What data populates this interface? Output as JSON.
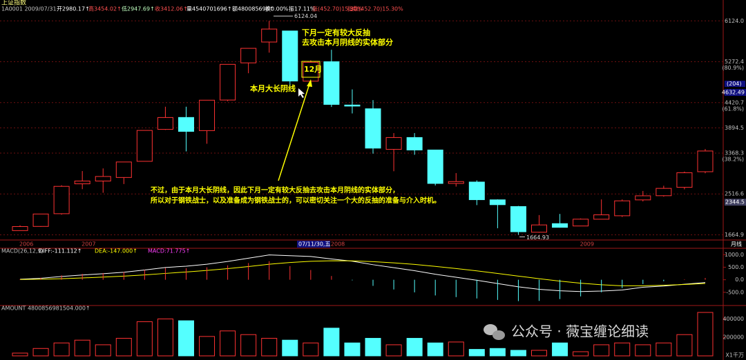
{
  "chart_data": [
    {
      "type": "candlestick",
      "title": "上证指数",
      "info": [
        {
          "text": "1A0001 2009/07/31",
          "color": "#c0c0c0"
        },
        {
          "text": "开2980.17↑",
          "color": "#ffffff"
        },
        {
          "text": "高3454.02↑",
          "color": "#ff5050"
        },
        {
          "text": "低2947.69↑",
          "color": "#c0ffc0"
        },
        {
          "text": "收3412.06↑",
          "color": "#ff5050"
        },
        {
          "text": "量4540701696↑",
          "color": "#ffffff"
        },
        {
          "text": "额480085696↑",
          "color": "#ffffff"
        },
        {
          "text": "换0.00%",
          "color": "#ffffff"
        },
        {
          "text": "振17.11%",
          "color": "#ffffff"
        },
        {
          "text": "涨(452.70)15.30%",
          "color": "#ff5050"
        },
        {
          "text": "指数(452.70)15.30%",
          "color": "#ff5050"
        }
      ],
      "categories": [
        "2006",
        null,
        null,
        "2007",
        null,
        null,
        null,
        null,
        null,
        null,
        null,
        null,
        null,
        null,
        null,
        "2008",
        null,
        null,
        null,
        null,
        null,
        null,
        null,
        null,
        null,
        null,
        null,
        "2009",
        null,
        null,
        null,
        null,
        null,
        null
      ],
      "open": [
        1753,
        1840,
        2105,
        2728,
        2786,
        2860,
        3197,
        3863,
        4111,
        3837,
        4474,
        5249,
        5683,
        5914,
        4868,
        5273,
        4370,
        4292,
        3446,
        3693,
        3433,
        2736,
        2765,
        2394,
        2254,
        1719,
        1898,
        1849,
        1990,
        2062,
        2393,
        2480,
        2655,
        2980.17
      ],
      "high": [
        1863,
        2101,
        2698,
        2994,
        3049,
        3183,
        3841,
        4335,
        4335,
        4471,
        5219,
        5552,
        6124.04,
        5915,
        5303,
        5522,
        4696,
        4473,
        3786,
        3786,
        3434,
        2952,
        2800,
        2404,
        2267,
        2076,
        2100,
        2006,
        2403,
        2402,
        2579,
        2688,
        2983,
        3454.02
      ],
      "low": [
        1751,
        1831,
        2085,
        2617,
        2541,
        2723,
        3196,
        3851,
        3404,
        3563,
        4450,
        5033,
        5462,
        4778,
        4812,
        4330,
        4195,
        3357,
        2990,
        3333,
        2693,
        2670,
        2284,
        1802,
        1664.93,
        1707,
        1814,
        1844,
        1990,
        2037,
        2361,
        2461,
        2613,
        2947.69
      ],
      "close": [
        1837,
        2099,
        2675,
        2786,
        2881,
        3183,
        3841,
        4110,
        3821,
        4471,
        5218,
        5552,
        5954,
        4871,
        5261,
        4383,
        4348,
        3472,
        3693,
        3433,
        2736,
        2775,
        2397,
        2293,
        1729,
        1871,
        1821,
        1991,
        2082,
        2373,
        2478,
        2633,
        2959,
        3412.06
      ],
      "up_color": "#ff3232",
      "down_color": "#54ffff",
      "ylim": [
        1600,
        6200
      ],
      "yticks": [
        {
          "value": 6124,
          "label": "6124.0"
        },
        5272.4,
        4420.7,
        3894.5,
        3368.3,
        2516.6,
        1664.9
      ],
      "fib_labels": [
        {
          "value": 5272.4,
          "label": "(80.9%)"
        },
        {
          "value": 4420.7,
          "label": "(61.8%)"
        },
        {
          "value": 3368.3,
          "label": "(38.2%)"
        }
      ],
      "cursor_label": "(204)",
      "cursor_price": 4632.49,
      "last_price": 2344.5,
      "cursor_date": "07/11/30,五",
      "period_label": "月线",
      "extreme_labels": [
        6124.04,
        1664.93
      ],
      "grid": true,
      "annotations": [
        "下月一定有较大反抽",
        "去攻击本月阴线的实体部分",
        "12月",
        "本月大长阴线",
        "不过，由于本月大长阴线，因此下月一定有较大反抽去攻击本月阴线的实体部分，",
        "所以对于钢铁战士，以及准备成为钢铁战士的，可以密切关注一个大的反抽的准备与介入时机。",
        "公众号 · 薇宝缠论细读"
      ]
    },
    {
      "type": "line",
      "title": "MACD(26,12,9)",
      "series": [
        {
          "name": "DIFF:-111.112↑",
          "color": "#ffffff",
          "values": [
            20,
            60,
            130,
            190,
            240,
            300,
            390,
            490,
            540,
            620,
            730,
            860,
            990,
            960,
            930,
            830,
            740,
            600,
            480,
            360,
            220,
            100,
            -20,
            -150,
            -280,
            -380,
            -440,
            -470,
            -450,
            -410,
            -300,
            -250,
            -180,
            -111.112
          ]
        },
        {
          "name": "DEA:-147.000↑",
          "color": "#ffff00",
          "values": [
            10,
            20,
            42,
            72,
            106,
            145,
            194,
            253,
            310,
            372,
            443,
            527,
            620,
            688,
            736,
            755,
            752,
            722,
            674,
            611,
            533,
            446,
            353,
            252,
            146,
            41,
            -55,
            -138,
            -200,
            -242,
            -240,
            -220,
            -190,
            -147
          ]
        },
        {
          "name": "MACD:71.775↑",
          "color": "#ff40ff",
          "type": "bar",
          "values": [
            20,
            80,
            176,
            236,
            268,
            310,
            392,
            474,
            460,
            496,
            574,
            666,
            740,
            544,
            388,
            150,
            -24,
            -244,
            -388,
            -502,
            -626,
            -692,
            -746,
            -804,
            -852,
            -842,
            -770,
            -664,
            -500,
            -336,
            -172,
            -60,
            20,
            71.775
          ]
        }
      ],
      "up_color": "#ff3232",
      "down_color": "#54ffff",
      "ylim": [
        -1000,
        1200
      ],
      "yticks": [
        {
          "value": 1000,
          "label": "1000.0"
        },
        {
          "value": 500,
          "label": "500.0"
        },
        {
          "value": 0,
          "label": "0.0"
        },
        {
          "value": -500,
          "label": "-500.0"
        }
      ]
    },
    {
      "type": "bar",
      "title": "AMOUNT 4800856981504.000↑",
      "values": [
        30000,
        80000,
        140000,
        170000,
        120000,
        190000,
        370000,
        400000,
        380000,
        210000,
        270000,
        230000,
        190000,
        170000,
        140000,
        300000,
        140000,
        190000,
        120000,
        190000,
        140000,
        150000,
        70000,
        80000,
        60000,
        60000,
        140000,
        45000,
        120000,
        140000,
        120000,
        140000,
        230000,
        470000
      ],
      "unit_label": "X1千万",
      "ylim": [
        0,
        500000
      ],
      "yticks": [
        400000,
        200000
      ]
    }
  ]
}
